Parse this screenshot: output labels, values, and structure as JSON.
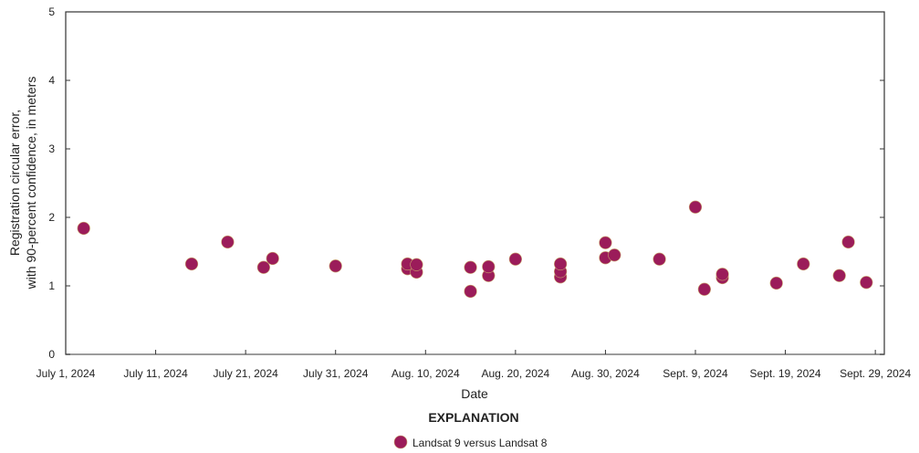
{
  "chart_data": {
    "type": "scatter",
    "title": "",
    "xlabel": "Date",
    "ylabel_lines": [
      "Registration circular error,",
      "with 90-percent confidence, in meters"
    ],
    "xlim": [
      "2024-07-01",
      "2024-09-30"
    ],
    "ylim": [
      0,
      5
    ],
    "x_ticks": [
      {
        "date": "2024-07-01",
        "label": "July 1, 2024"
      },
      {
        "date": "2024-07-11",
        "label": "July 11, 2024"
      },
      {
        "date": "2024-07-21",
        "label": "July 21, 2024"
      },
      {
        "date": "2024-07-31",
        "label": "July 31, 2024"
      },
      {
        "date": "2024-08-10",
        "label": "Aug. 10, 2024"
      },
      {
        "date": "2024-08-20",
        "label": "Aug. 20, 2024"
      },
      {
        "date": "2024-08-30",
        "label": "Aug. 30, 2024"
      },
      {
        "date": "2024-09-09",
        "label": "Sept. 9, 2024"
      },
      {
        "date": "2024-09-19",
        "label": "Sept. 19, 2024"
      },
      {
        "date": "2024-09-29",
        "label": "Sept. 29, 2024"
      }
    ],
    "y_ticks": [
      "0",
      "1",
      "2",
      "3",
      "4",
      "5"
    ],
    "grid": false,
    "legend": {
      "title": "EXPLANATION",
      "placement": "bottom"
    },
    "series": [
      {
        "name": "Landsat 9 versus Landsat 8",
        "color": "#9b1c5a",
        "edge_color": "#c9a16b",
        "points": [
          [
            "2024-07-03",
            1.84
          ],
          [
            "2024-07-15",
            1.32
          ],
          [
            "2024-07-19",
            1.64
          ],
          [
            "2024-07-23",
            1.27
          ],
          [
            "2024-07-24",
            1.4
          ],
          [
            "2024-07-31",
            1.29
          ],
          [
            "2024-08-08",
            1.25
          ],
          [
            "2024-08-08",
            1.32
          ],
          [
            "2024-08-09",
            1.2
          ],
          [
            "2024-08-09",
            1.31
          ],
          [
            "2024-08-15",
            0.92
          ],
          [
            "2024-08-15",
            1.27
          ],
          [
            "2024-08-17",
            1.15
          ],
          [
            "2024-08-17",
            1.28
          ],
          [
            "2024-08-20",
            1.39
          ],
          [
            "2024-08-25",
            1.13
          ],
          [
            "2024-08-25",
            1.21
          ],
          [
            "2024-08-25",
            1.32
          ],
          [
            "2024-08-30",
            1.41
          ],
          [
            "2024-08-30",
            1.63
          ],
          [
            "2024-08-31",
            1.45
          ],
          [
            "2024-09-05",
            1.39
          ],
          [
            "2024-09-09",
            2.15
          ],
          [
            "2024-09-10",
            0.95
          ],
          [
            "2024-09-12",
            1.12
          ],
          [
            "2024-09-12",
            1.17
          ],
          [
            "2024-09-18",
            1.04
          ],
          [
            "2024-09-21",
            1.32
          ],
          [
            "2024-09-25",
            1.15
          ],
          [
            "2024-09-26",
            1.64
          ],
          [
            "2024-09-28",
            1.05
          ]
        ]
      }
    ]
  }
}
